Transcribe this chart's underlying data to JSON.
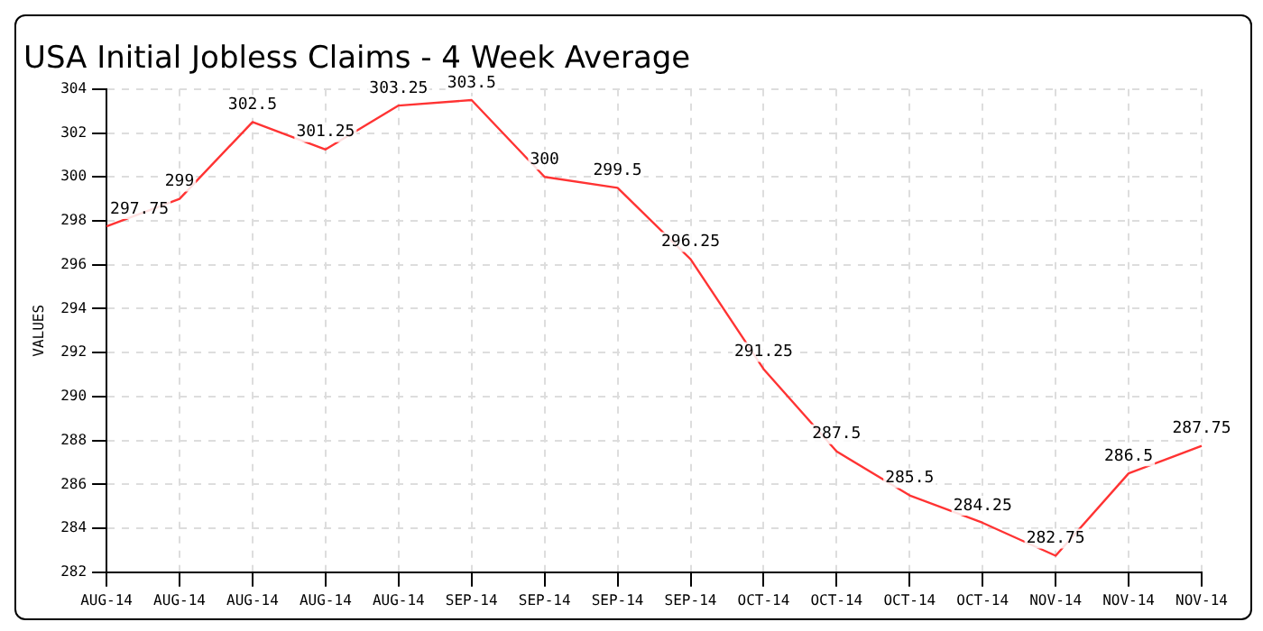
{
  "chart_data": {
    "type": "line",
    "title": "USA Initial Jobless Claims - 4 Week Average",
    "ylabel": "VALUES",
    "categories": [
      "AUG-14",
      "AUG-14",
      "AUG-14",
      "AUG-14",
      "AUG-14",
      "SEP-14",
      "SEP-14",
      "SEP-14",
      "SEP-14",
      "OCT-14",
      "OCT-14",
      "OCT-14",
      "OCT-14",
      "NOV-14",
      "NOV-14",
      "NOV-14"
    ],
    "series": [
      {
        "color": "#ff3333",
        "values": [
          297.75,
          299,
          302.5,
          301.25,
          303.25,
          303.5,
          300,
          299.5,
          296.25,
          291.25,
          287.5,
          285.5,
          284.25,
          282.75,
          286.5,
          287.75
        ]
      }
    ],
    "ylim": [
      282,
      304
    ],
    "yticks": [
      282,
      284,
      286,
      288,
      290,
      292,
      294,
      296,
      298,
      300,
      302,
      304
    ],
    "grid": true,
    "legend": false,
    "marker": "none",
    "line_style": "solid",
    "data_labels": true
  }
}
